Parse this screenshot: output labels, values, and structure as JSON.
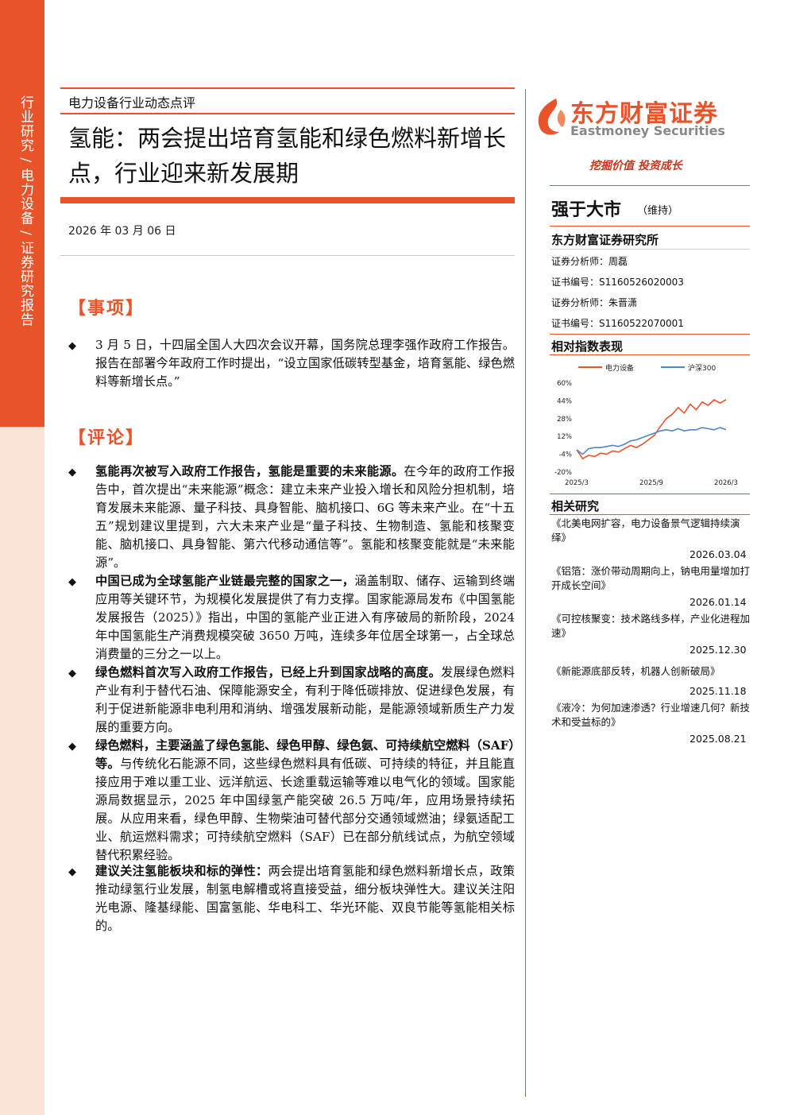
{
  "sidebar": {
    "vertical_text": "行业研究 / 电力设备 / 证券研究报告"
  },
  "header": {
    "category": "电力设备行业动态点评",
    "title": "氢能：两会提出培育氢能和绿色燃料新增长点，行业迎来新发展期",
    "date": "2026 年 03 月 06 日"
  },
  "section_event": {
    "heading": "【事项】",
    "paragraph": "3 月 5 日，十四届全国人大四次会议开幕，国务院总理李强作政府工作报告。报告在部署今年政府工作时提出，“设立国家低碳转型基金，培育氢能、绿色燃料等新增长点。”"
  },
  "section_comment": {
    "heading": "【评论】",
    "bullets": [
      {
        "bold": "氢能再次被写入政府工作报告，氢能是重要的未来能源。",
        "text": "在今年的政府工作报告中，首次提出“未来能源”概念：建立未来产业投入增长和风险分担机制，培育发展未来能源、量子科技、具身智能、脑机接口、6G 等未来产业。在“十五五”规划建议里提到，六大未来产业是“量子科技、生物制造、氢能和核聚变能、脑机接口、具身智能、第六代移动通信等”。氢能和核聚变能就是“未来能源”。"
      },
      {
        "bold": "中国已成为全球氢能产业链最完整的国家之一，",
        "text": "涵盖制取、储存、运输到终端应用等关键环节，为规模化发展提供了有力支撑。国家能源局发布《中国氢能发展报告（2025）》指出，中国的氢能产业正进入有序破局的新阶段，2024 年中国氢能生产消费规模突破 3650 万吨，连续多年位居全球第一，占全球总消费量的三分之一以上。"
      },
      {
        "bold": "绿色燃料首次写入政府工作报告，已经上升到国家战略的高度。",
        "text": "发展绿色燃料产业有利于替代石油、保障能源安全，有利于降低碳排放、促进绿色发展，有利于促进新能源非电利用和消纳、增强发展新动能，是能源领域新质生产力发展的重要方向。"
      },
      {
        "bold": "绿色燃料，主要涵盖了绿色氢能、绿色甲醇、绿色氨、可持续航空燃料（SAF）等。",
        "text": "与传统化石能源不同，这些绿色燃料具有低碳、可持续的特征，并且能直接应用于难以重工业、远洋航运、长途重载运输等难以电气化的领域。国家能源局数据显示，2025 年中国绿氢产能突破 26.5 万吨/年，应用场景持续拓展。从应用来看，绿色甲醇、生物柴油可替代部分交通领域燃油；绿氨适配工业、航运燃料需求；可持续航空燃料（SAF）已在部分航线试点，为航空领域替代积累经验。"
      },
      {
        "bold": "建议关注氢能板块和标的弹性：",
        "text": "两会提出培育氢能和绿色燃料新增长点，政策推动绿氢行业发展，制氢电解槽或将直接受益，细分板块弹性大。建议关注阳光电源、隆基绿能、国富氢能、华电科工、华光环能、双良节能等氢能相关标的。"
      }
    ]
  },
  "right": {
    "logo_cn": "东方财富证券",
    "logo_en": "Eastmoney Securities",
    "slogan": "挖掘价值 投资成长",
    "rating": "强于大市",
    "rating_note": "（维持）",
    "institute": "东方财富证券研究所",
    "analyst1": "证券分析师：周磊",
    "cert1": "证书编号：S1160526020003",
    "analyst2": "证券分析师：朱晋潇",
    "cert2": "证书编号：S1160522070001",
    "chart_heading": "相对指数表现",
    "related_heading": "相关研究",
    "reports": [
      {
        "title": "《北美电网扩容，电力设备景气逻辑持续演绎》",
        "date": "2026.03.04"
      },
      {
        "title": "《铝箔：涨价带动周期向上，钠电用量增加打开成长空间》",
        "date": "2026.01.14"
      },
      {
        "title": "《可控核聚变：技术路线多样，产业化进程加速》",
        "date": "2025.12.30"
      },
      {
        "title": "《新能源底部反转，机器人创新破局》",
        "date": "2025.11.18"
      },
      {
        "title": "《液冷：为何加速渗透？行业增速几何？新技术和受益标的》",
        "date": "2025.08.21"
      }
    ]
  },
  "colors": {
    "accent": "#e8542a",
    "series_power": "#e8542a",
    "series_hs300": "#4f86c6"
  },
  "chart_data": {
    "type": "line",
    "title": "",
    "legend": [
      "电力设备",
      "沪深300"
    ],
    "legend_position": "top",
    "x_ticks": [
      "2025/3",
      "2025/9",
      "2026/3"
    ],
    "y_ticks": [
      "60%",
      "44%",
      "28%",
      "12%",
      "-4%",
      "-20%"
    ],
    "ylim": [
      -20,
      60
    ],
    "x": [
      0,
      0.04,
      0.08,
      0.12,
      0.16,
      0.2,
      0.24,
      0.28,
      0.32,
      0.36,
      0.4,
      0.44,
      0.48,
      0.52,
      0.56,
      0.6,
      0.64,
      0.68,
      0.72,
      0.76,
      0.8,
      0.84,
      0.88,
      0.92,
      0.96,
      1.0
    ],
    "series": [
      {
        "name": "电力设备",
        "values": [
          0,
          -8,
          -5,
          -6,
          -3,
          -4,
          -1,
          -2,
          1,
          4,
          2,
          5,
          9,
          13,
          21,
          28,
          32,
          38,
          33,
          41,
          36,
          43,
          40,
          45,
          42,
          45
        ]
      },
      {
        "name": "沪深300",
        "values": [
          0,
          -4,
          1,
          2,
          2,
          3,
          4,
          3,
          5,
          8,
          9,
          11,
          13,
          15,
          17,
          18,
          17,
          19,
          17,
          18,
          18,
          20,
          19,
          18,
          20,
          18
        ]
      }
    ]
  }
}
